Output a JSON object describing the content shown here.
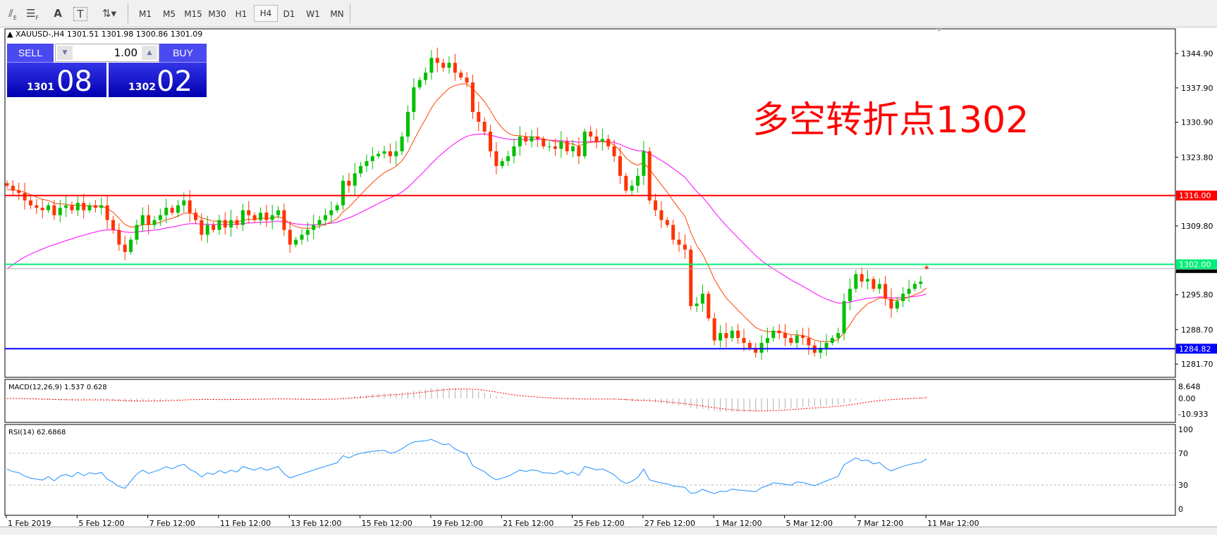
{
  "toolbar": {
    "tools": [
      {
        "icon": "equidistant-channel-icon",
        "label": "E"
      },
      {
        "icon": "fibonacci-icon",
        "label": "F"
      },
      {
        "icon": "text-icon",
        "label": "A"
      },
      {
        "icon": "text-label-icon",
        "label": "T"
      },
      {
        "icon": "arrows-dropdown-icon",
        "label": ""
      }
    ],
    "timeframes": [
      "M1",
      "M5",
      "M15",
      "M30",
      "H1",
      "H4",
      "D1",
      "W1",
      "MN"
    ],
    "active_timeframe": "H4"
  },
  "symbol_line": "XAUUSD-,H4  1301.51 1301.98 1300.86 1301.09",
  "trade_panel": {
    "sell_label": "SELL",
    "buy_label": "BUY",
    "lot": "1.00",
    "sell_price_small": "1301",
    "sell_price_big": "08",
    "buy_price_small": "1302",
    "buy_price_big": "02"
  },
  "annotation": "多空转折点1302",
  "colors": {
    "bull": "#00c000",
    "bear": "#ff3300",
    "ma_fast": "#ff4400",
    "ma_slow": "#ff00ff",
    "resistance": "#ff0000",
    "pivot": "#00ee77",
    "support": "#0000ff",
    "rsi": "#1e90ff",
    "macd_signal": "#ff0000",
    "macd_hist": "#b0b0b0"
  },
  "chart_data": {
    "type": "candlestick",
    "symbol": "XAUUSD-",
    "timeframe": "H4",
    "y_ticks": [
      "1344.90",
      "1337.90",
      "1330.90",
      "1323.80",
      "1309.80",
      "1295.80",
      "1288.70",
      "1281.70"
    ],
    "ylim": [
      1277,
      1352
    ],
    "x_ticks": [
      "1 Feb 2019",
      "5 Feb 12:00",
      "7 Feb 12:00",
      "11 Feb 12:00",
      "13 Feb 12:00",
      "15 Feb 12:00",
      "19 Feb 12:00",
      "21 Feb 12:00",
      "25 Feb 12:00",
      "27 Feb 12:00",
      "1 Mar 12:00",
      "5 Mar 12:00",
      "7 Mar 12:00",
      "11 Mar 12:00"
    ],
    "closes": [
      1318,
      1317,
      1316.5,
      1315,
      1314,
      1313.5,
      1313,
      1314,
      1312,
      1313.5,
      1314,
      1313,
      1314.5,
      1313,
      1314,
      1313.5,
      1314,
      1311,
      1309,
      1306,
      1304.5,
      1307,
      1310,
      1312,
      1310,
      1311,
      1312,
      1313.5,
      1312.5,
      1314,
      1315,
      1312.5,
      1311,
      1308,
      1310,
      1309,
      1311,
      1309.5,
      1311,
      1310,
      1313,
      1312,
      1311,
      1312.5,
      1311,
      1312,
      1313,
      1309,
      1306,
      1307,
      1308,
      1309,
      1310,
      1311,
      1312,
      1313,
      1314,
      1319,
      1318,
      1320.5,
      1322,
      1323,
      1324,
      1324.5,
      1325,
      1324,
      1325,
      1328,
      1333,
      1338,
      1339.5,
      1341,
      1344,
      1343,
      1342,
      1343,
      1341,
      1340,
      1339,
      1333,
      1331,
      1329,
      1325,
      1322,
      1323,
      1324,
      1326,
      1328,
      1327,
      1328,
      1327.5,
      1326,
      1326,
      1325.5,
      1327,
      1325,
      1326,
      1324,
      1329,
      1328,
      1327,
      1327.5,
      1326,
      1324,
      1320,
      1317,
      1318,
      1320,
      1325,
      1315,
      1313,
      1311,
      1310,
      1307,
      1306,
      1305,
      1293.5,
      1294,
      1296,
      1291,
      1286.5,
      1288,
      1287,
      1288.5,
      1287,
      1286,
      1285,
      1284,
      1286,
      1287,
      1288.5,
      1288,
      1287,
      1286,
      1287.5,
      1287,
      1285.5,
      1284,
      1285,
      1286,
      1287,
      1288,
      1294.5,
      1297,
      1300,
      1298.5,
      1299,
      1297,
      1298,
      1295,
      1293,
      1294.5,
      1296,
      1297,
      1298,
      1298.5,
      1301.09
    ],
    "last": {
      "open": 1301.51,
      "high": 1301.98,
      "low": 1300.86,
      "close": 1301.09
    },
    "horizontal_lines": [
      {
        "label": "1316.00",
        "value": 1316.0,
        "color": "#ff0000"
      },
      {
        "label": "1302.00",
        "value": 1302.0,
        "color": "#00ee77"
      },
      {
        "label": "1284.82",
        "value": 1284.82,
        "color": "#0000ff"
      }
    ],
    "current_price": 1301.09,
    "indicators": {
      "macd": {
        "label": "MACD(12,26,9) 1.537 0.628",
        "ticks": [
          "8.648",
          "0.00",
          "-10.933"
        ],
        "ylim": [
          -12,
          10
        ]
      },
      "rsi": {
        "label": "RSI(14) 62.6868",
        "ticks": [
          "100",
          "70",
          "30",
          "0"
        ],
        "levels": [
          70,
          30
        ],
        "ylim": [
          0,
          100
        ]
      }
    }
  }
}
